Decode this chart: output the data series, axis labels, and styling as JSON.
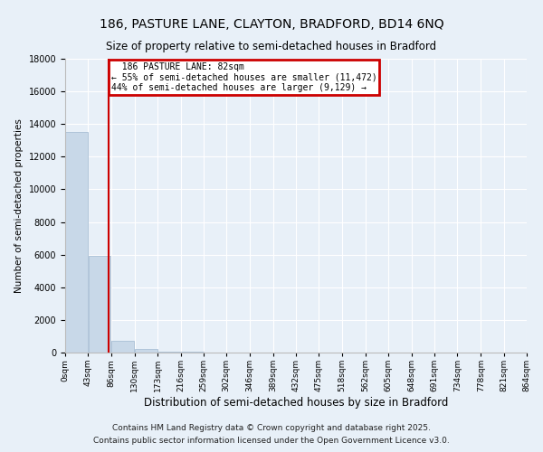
{
  "title": "186, PASTURE LANE, CLAYTON, BRADFORD, BD14 6NQ",
  "subtitle": "Size of property relative to semi-detached houses in Bradford",
  "xlabel": "Distribution of semi-detached houses by size in Bradford",
  "ylabel": "Number of semi-detached properties",
  "property_size": 82,
  "property_label": "186 PASTURE LANE: 82sqm",
  "annotation_line1": "← 55% of semi-detached houses are smaller (11,472)",
  "annotation_line2": "44% of semi-detached houses are larger (9,129) →",
  "footnote1": "Contains HM Land Registry data © Crown copyright and database right 2025.",
  "footnote2": "Contains public sector information licensed under the Open Government Licence v3.0.",
  "bin_edges": [
    0,
    43,
    86,
    130,
    173,
    216,
    259,
    302,
    346,
    389,
    432,
    475,
    518,
    562,
    605,
    648,
    691,
    734,
    778,
    821,
    864
  ],
  "bar_values": [
    13500,
    5900,
    700,
    200,
    80,
    30,
    20,
    15,
    10,
    8,
    5,
    4,
    3,
    2,
    2,
    1,
    1,
    1,
    1,
    1
  ],
  "bar_color": "#c8d8e8",
  "bar_edge_color": "#a0b8d0",
  "red_line_color": "#cc0000",
  "annotation_box_color": "#cc0000",
  "background_color": "#e8f0f8",
  "ylim": [
    0,
    18000
  ],
  "yticks": [
    0,
    2000,
    4000,
    6000,
    8000,
    10000,
    12000,
    14000,
    16000,
    18000
  ]
}
